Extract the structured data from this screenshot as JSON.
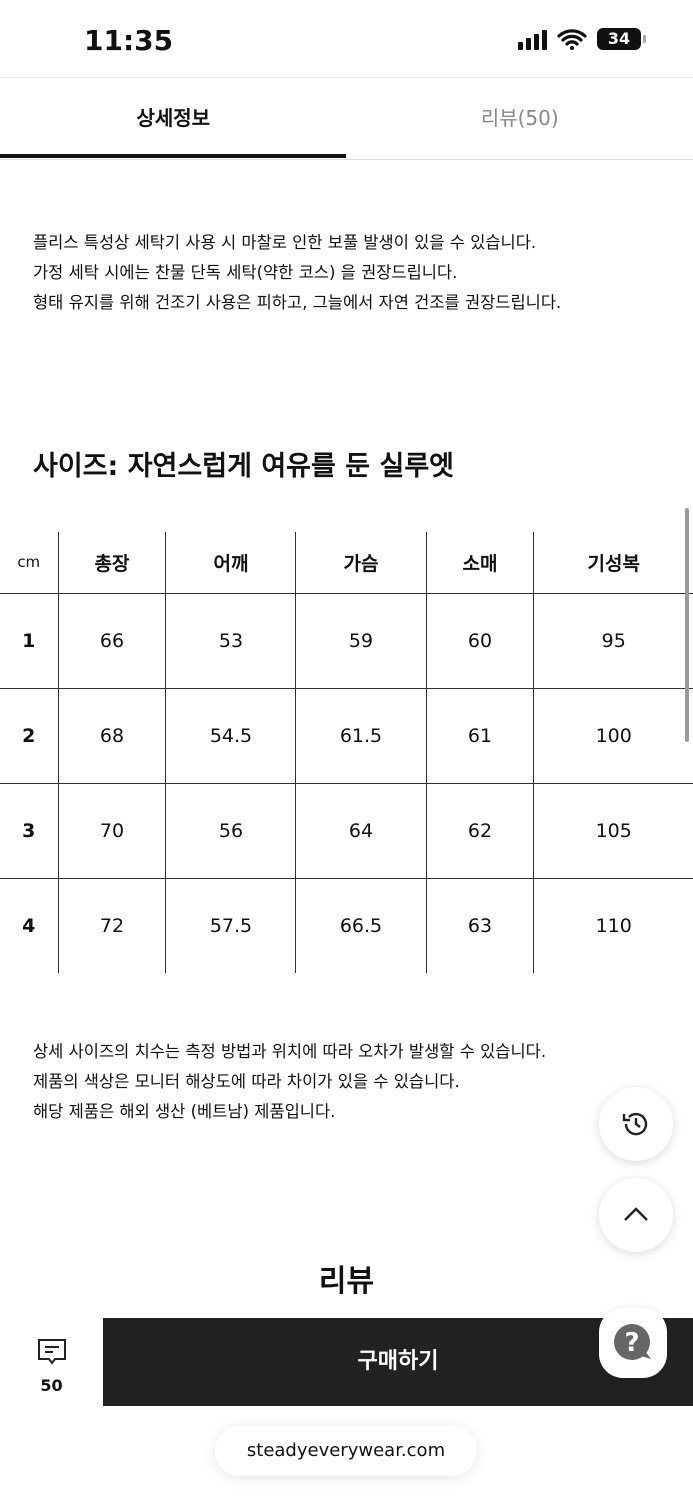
{
  "status": {
    "time": "11:35",
    "battery": "34"
  },
  "tabs": [
    {
      "label": "상세정보",
      "active": true
    },
    {
      "label": "리뷰(50)",
      "active": false
    }
  ],
  "care": [
    "플리스 특성상 세탁기 사용 시 마찰로 인한 보풀 발생이 있을 수 있습니다.",
    "가정 세탁 시에는 찬물 단독 세탁(약한 코스) 을 권장드립니다.",
    "형태 유지를 위해 건조기 사용은 피하고, 그늘에서 자연 건조를 권장드립니다."
  ],
  "size": {
    "title": "사이즈: 자연스럽게 여유를 둔 실루엣",
    "headers": [
      "cm",
      "총장",
      "어깨",
      "가슴",
      "소매",
      "기성복"
    ],
    "rows": [
      [
        "1",
        "66",
        "53",
        "59",
        "60",
        "95"
      ],
      [
        "2",
        "68",
        "54.5",
        "61.5",
        "61",
        "100"
      ],
      [
        "3",
        "70",
        "56",
        "64",
        "62",
        "105"
      ],
      [
        "4",
        "72",
        "57.5",
        "66.5",
        "63",
        "110"
      ]
    ]
  },
  "notes": [
    "상세 사이즈의 치수는 측정 방법과 위치에 따라 오차가 발생할 수 있습니다.",
    "제품의 색상은 모니터 해상도에 따라 차이가 있을 수 있습니다.",
    "해당 제품은 해외 생산 (베트남) 제품입니다."
  ],
  "review": {
    "title": "리뷰",
    "count": "50"
  },
  "buy_label": "구매하기",
  "url": "steadyeverywear.com"
}
